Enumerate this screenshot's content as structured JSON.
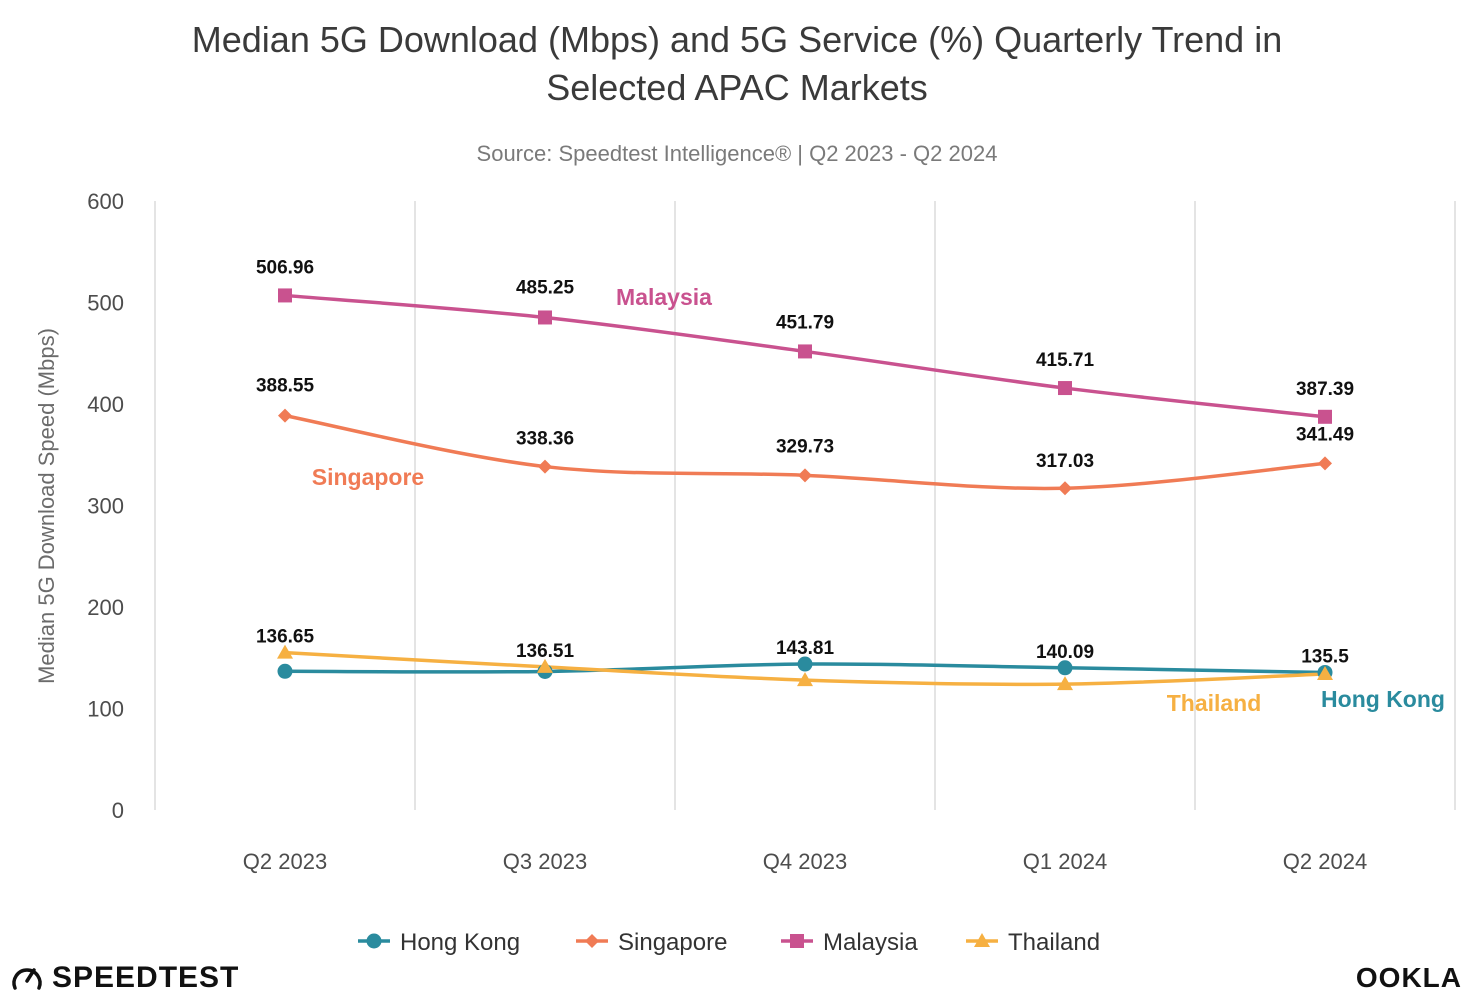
{
  "chart_data": {
    "type": "line",
    "title_line1": "Median 5G Download (Mbps) and 5G Service (%) Quarterly Trend in",
    "title_line2": "Selected APAC Markets",
    "subtitle": "Source: Speedtest Intelligence® | Q2 2023 - Q2 2024",
    "ylabel": "Median 5G Download Speed (Mbps)",
    "xlabel": "",
    "ylim": [
      0,
      600
    ],
    "yticks": [
      0,
      100,
      200,
      300,
      400,
      500,
      600
    ],
    "grid": "vertical",
    "legend_position": "bottom",
    "categories": [
      "Q2 2023",
      "Q3 2023",
      "Q4 2023",
      "Q1 2024",
      "Q2 2024"
    ],
    "series": [
      {
        "name": "Hong Kong",
        "color": "#2a8b9e",
        "marker": "circle",
        "values": [
          136.65,
          136.51,
          143.81,
          140.09,
          135.5
        ],
        "labels": [
          "136.65",
          "136.51",
          "143.81",
          "140.09",
          "135.5"
        ]
      },
      {
        "name": "Singapore",
        "color": "#f07b55",
        "marker": "diamond",
        "values": [
          388.55,
          338.36,
          329.73,
          317.03,
          341.49
        ],
        "labels": [
          "388.55",
          "338.36",
          "329.73",
          "317.03",
          "341.49"
        ]
      },
      {
        "name": "Malaysia",
        "color": "#c9528f",
        "marker": "square",
        "values": [
          506.96,
          485.25,
          451.79,
          415.71,
          387.39
        ],
        "labels": [
          "506.96",
          "485.25",
          "451.79",
          "415.71",
          "387.39"
        ]
      },
      {
        "name": "Thailand",
        "color": "#f6b042",
        "marker": "triangle",
        "values": [
          155,
          141,
          128,
          124,
          134
        ],
        "labels": []
      }
    ]
  },
  "branding": {
    "left_logo_text": "SPEEDTEST",
    "right_logo_text": "OOKLA"
  }
}
